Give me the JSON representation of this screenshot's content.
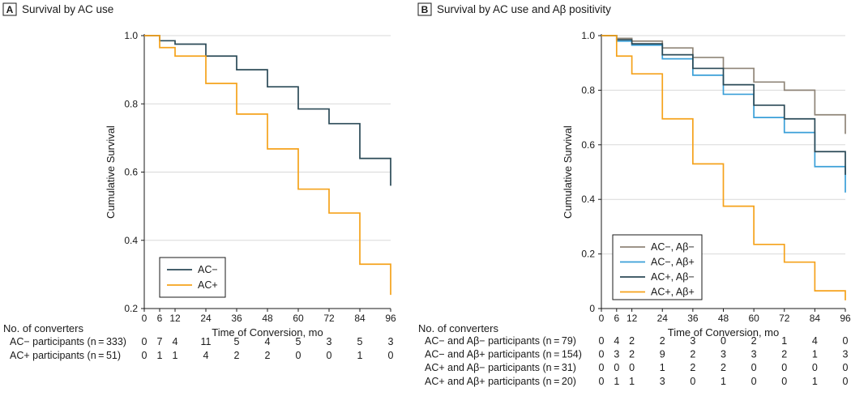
{
  "chart_data": [
    {
      "type": "line",
      "panel_letter": "A",
      "title": "Survival by AC use",
      "xlabel": "Time of Conversion, mo",
      "ylabel": "Cumulative Survival",
      "xlim": [
        0,
        96
      ],
      "ylim": [
        0.2,
        1.0
      ],
      "xticks": [
        0,
        6,
        12,
        24,
        36,
        48,
        60,
        72,
        84,
        96
      ],
      "yticks": [
        "0.2",
        "0.4",
        "0.6",
        "0.8",
        "1.0"
      ],
      "grid": "horizontal",
      "legend_position": "bottom-left",
      "series": [
        {
          "name": "AC−",
          "color": "#2b4a57",
          "points": [
            [
              0,
              1.0
            ],
            [
              6,
              0.985
            ],
            [
              12,
              0.975
            ],
            [
              24,
              0.94
            ],
            [
              36,
              0.9
            ],
            [
              48,
              0.85
            ],
            [
              60,
              0.785
            ],
            [
              72,
              0.742
            ],
            [
              84,
              0.64
            ],
            [
              96,
              0.56
            ]
          ]
        },
        {
          "name": "AC+",
          "color": "#f5a21b",
          "points": [
            [
              0,
              1.0
            ],
            [
              6,
              0.965
            ],
            [
              12,
              0.94
            ],
            [
              24,
              0.86
            ],
            [
              36,
              0.77
            ],
            [
              48,
              0.668
            ],
            [
              60,
              0.55
            ],
            [
              72,
              0.48
            ],
            [
              84,
              0.33
            ],
            [
              96,
              0.24
            ]
          ]
        }
      ],
      "risk_table": {
        "header": "No. of converters",
        "rows": [
          {
            "label": "AC− participants (n = 333)",
            "values": [
              "0",
              "7",
              "4",
              "11",
              "5",
              "4",
              "5",
              "3",
              "5",
              "3"
            ]
          },
          {
            "label": "AC+ participants (n = 51)",
            "values": [
              "0",
              "1",
              "1",
              "4",
              "2",
              "2",
              "0",
              "0",
              "1",
              "0"
            ]
          }
        ]
      }
    },
    {
      "type": "line",
      "panel_letter": "B",
      "title": "Survival by AC use and Aβ positivity",
      "xlabel": "Time of Conversion, mo",
      "ylabel": "Cumulative Survival",
      "xlim": [
        0,
        96
      ],
      "ylim": [
        0,
        1.0
      ],
      "xticks": [
        0,
        6,
        12,
        24,
        36,
        48,
        60,
        72,
        84,
        96
      ],
      "yticks": [
        "0",
        "0.2",
        "0.4",
        "0.6",
        "0.8",
        "1.0"
      ],
      "grid": "horizontal",
      "legend_position": "bottom-left",
      "series": [
        {
          "name": "AC−, Aβ−",
          "color": "#8f8578",
          "points": [
            [
              0,
              1.0
            ],
            [
              6,
              0.99
            ],
            [
              12,
              0.98
            ],
            [
              24,
              0.955
            ],
            [
              36,
              0.92
            ],
            [
              48,
              0.88
            ],
            [
              60,
              0.83
            ],
            [
              72,
              0.8
            ],
            [
              84,
              0.71
            ],
            [
              96,
              0.64
            ]
          ]
        },
        {
          "name": "AC−, Aβ+",
          "color": "#3a9fd8",
          "points": [
            [
              0,
              1.0
            ],
            [
              6,
              0.98
            ],
            [
              12,
              0.965
            ],
            [
              24,
              0.915
            ],
            [
              36,
              0.855
            ],
            [
              48,
              0.785
            ],
            [
              60,
              0.7
            ],
            [
              72,
              0.645
            ],
            [
              84,
              0.52
            ],
            [
              96,
              0.425
            ]
          ]
        },
        {
          "name": "AC+, Aβ−",
          "color": "#2b4a57",
          "points": [
            [
              0,
              1.0
            ],
            [
              6,
              0.985
            ],
            [
              12,
              0.97
            ],
            [
              24,
              0.93
            ],
            [
              36,
              0.88
            ],
            [
              48,
              0.82
            ],
            [
              60,
              0.745
            ],
            [
              72,
              0.695
            ],
            [
              84,
              0.575
            ],
            [
              96,
              0.49
            ]
          ]
        },
        {
          "name": "AC+, Aβ+",
          "color": "#f5a21b",
          "points": [
            [
              0,
              1.0
            ],
            [
              6,
              0.925
            ],
            [
              12,
              0.86
            ],
            [
              24,
              0.695
            ],
            [
              36,
              0.53
            ],
            [
              48,
              0.375
            ],
            [
              60,
              0.235
            ],
            [
              72,
              0.17
            ],
            [
              84,
              0.065
            ],
            [
              96,
              0.03
            ]
          ]
        }
      ],
      "risk_table": {
        "header": "No. of converters",
        "rows": [
          {
            "label": "AC− and Aβ− participants (n = 79)",
            "values": [
              "0",
              "4",
              "2",
              "2",
              "3",
              "0",
              "2",
              "1",
              "4",
              "0"
            ]
          },
          {
            "label": "AC− and Aβ+ participants (n = 154)",
            "values": [
              "0",
              "3",
              "2",
              "9",
              "2",
              "3",
              "3",
              "2",
              "1",
              "3"
            ]
          },
          {
            "label": "AC+ and Aβ− participants (n = 31)",
            "values": [
              "0",
              "0",
              "0",
              "1",
              "2",
              "2",
              "0",
              "0",
              "0",
              "0"
            ]
          },
          {
            "label": "AC+ and Aβ+ participants (n = 20)",
            "values": [
              "0",
              "1",
              "1",
              "3",
              "0",
              "1",
              "0",
              "0",
              "1",
              "0"
            ]
          }
        ]
      }
    }
  ]
}
